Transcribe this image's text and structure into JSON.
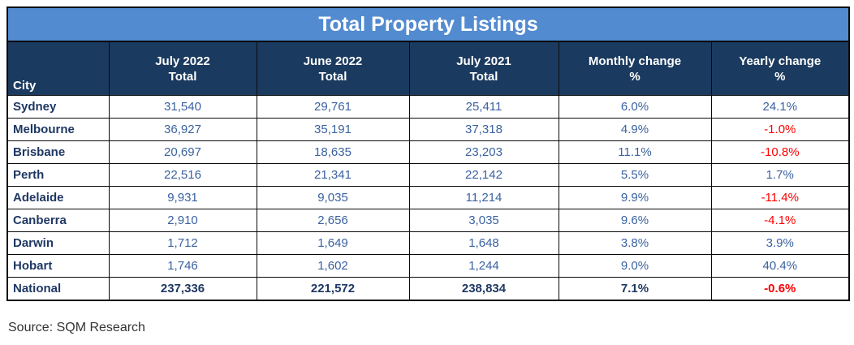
{
  "title": "Total Property Listings",
  "source": "Source: SQM Research",
  "colors": {
    "title_bar": "#538BD0",
    "header_bg": "#1B3A5F",
    "header_text": "#FFFFFF",
    "city_text": "#1F3864",
    "value_text": "#3A62A0",
    "negative_text": "#FF0000",
    "border": "#0A0A0A"
  },
  "table": {
    "header_city": "City",
    "headers": [
      {
        "line1": "July 2022",
        "line2": "Total"
      },
      {
        "line1": "June 2022",
        "line2": "Total"
      },
      {
        "line1": "July 2021",
        "line2": "Total"
      },
      {
        "line1": "Monthly change",
        "line2": "%"
      },
      {
        "line1": "Yearly change",
        "line2": "%"
      }
    ],
    "rows": [
      {
        "city": "Sydney",
        "values": [
          "31,540",
          "29,761",
          "25,411",
          "6.0%",
          "24.1%"
        ],
        "bold": false
      },
      {
        "city": "Melbourne",
        "values": [
          "36,927",
          "35,191",
          "37,318",
          "4.9%",
          "-1.0%"
        ],
        "bold": false
      },
      {
        "city": "Brisbane",
        "values": [
          "20,697",
          "18,635",
          "23,203",
          "11.1%",
          "-10.8%"
        ],
        "bold": false
      },
      {
        "city": "Perth",
        "values": [
          "22,516",
          "21,341",
          "22,142",
          "5.5%",
          "1.7%"
        ],
        "bold": false
      },
      {
        "city": "Adelaide",
        "values": [
          "9,931",
          "9,035",
          "11,214",
          "9.9%",
          "-11.4%"
        ],
        "bold": false
      },
      {
        "city": "Canberra",
        "values": [
          "2,910",
          "2,656",
          "3,035",
          "9.6%",
          "-4.1%"
        ],
        "bold": false
      },
      {
        "city": "Darwin",
        "values": [
          "1,712",
          "1,649",
          "1,648",
          "3.8%",
          "3.9%"
        ],
        "bold": false
      },
      {
        "city": "Hobart",
        "values": [
          "1,746",
          "1,602",
          "1,244",
          "9.0%",
          "40.4%"
        ],
        "bold": false
      },
      {
        "city": "National",
        "values": [
          "237,336",
          "221,572",
          "238,834",
          "7.1%",
          "-0.6%"
        ],
        "bold": true
      }
    ]
  },
  "chart_data": {
    "type": "table",
    "title": "Total Property Listings",
    "columns": [
      "City",
      "July 2022 Total",
      "June 2022 Total",
      "July 2021 Total",
      "Monthly change %",
      "Yearly change %"
    ],
    "rows": [
      [
        "Sydney",
        31540,
        29761,
        25411,
        "6.0%",
        "24.1%"
      ],
      [
        "Melbourne",
        36927,
        35191,
        37318,
        "4.9%",
        "-1.0%"
      ],
      [
        "Brisbane",
        20697,
        18635,
        23203,
        "11.1%",
        "-10.8%"
      ],
      [
        "Perth",
        22516,
        21341,
        22142,
        "5.5%",
        "1.7%"
      ],
      [
        "Adelaide",
        9931,
        9035,
        11214,
        "9.9%",
        "-11.4%"
      ],
      [
        "Canberra",
        2910,
        2656,
        3035,
        "9.6%",
        "-4.1%"
      ],
      [
        "Darwin",
        1712,
        1649,
        1648,
        "3.8%",
        "3.9%"
      ],
      [
        "Hobart",
        1746,
        1602,
        1244,
        "9.0%",
        "40.4%"
      ],
      [
        "National",
        237336,
        221572,
        238834,
        "7.1%",
        "-0.6%"
      ]
    ],
    "annotations": [
      "Source: SQM Research"
    ],
    "layout": {
      "negative_values_red": true,
      "national_row_bold": true
    }
  }
}
